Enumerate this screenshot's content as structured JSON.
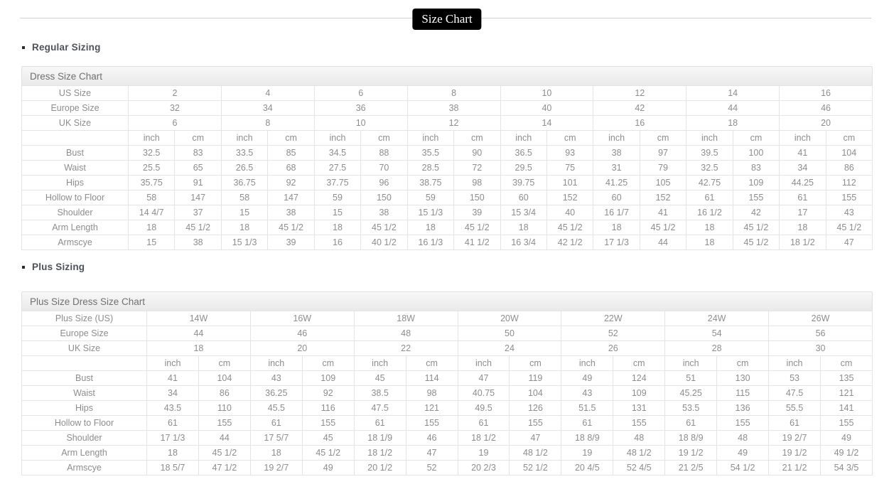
{
  "badge": {
    "label": "Size Chart"
  },
  "units": {
    "inch": "inch",
    "cm": "cm"
  },
  "colors": {
    "badge_bg": "#000000",
    "badge_text": "#ffffff",
    "heading_text": "#4e535a",
    "table_title_text": "#707070",
    "table_text": "#8d8d8d",
    "cell_border": "#e4e4e4"
  },
  "sections": [
    {
      "heading": "Regular Sizing",
      "table_title": "Dress Size Chart",
      "size_rows": [
        {
          "label": "US Size",
          "values": [
            "2",
            "4",
            "6",
            "8",
            "10",
            "12",
            "14",
            "16"
          ]
        },
        {
          "label": "Europe Size",
          "values": [
            "32",
            "34",
            "36",
            "38",
            "40",
            "42",
            "44",
            "46"
          ]
        },
        {
          "label": "UK Size",
          "values": [
            "6",
            "8",
            "10",
            "12",
            "14",
            "16",
            "18",
            "20"
          ]
        }
      ],
      "measure_rows": [
        {
          "label": "Bust",
          "values": [
            "32.5",
            "83",
            "33.5",
            "85",
            "34.5",
            "88",
            "35.5",
            "90",
            "36.5",
            "93",
            "38",
            "97",
            "39.5",
            "100",
            "41",
            "104"
          ]
        },
        {
          "label": "Waist",
          "values": [
            "25.5",
            "65",
            "26.5",
            "68",
            "27.5",
            "70",
            "28.5",
            "72",
            "29.5",
            "75",
            "31",
            "79",
            "32.5",
            "83",
            "34",
            "86"
          ]
        },
        {
          "label": "Hips",
          "values": [
            "35.75",
            "91",
            "36.75",
            "92",
            "37.75",
            "96",
            "38.75",
            "98",
            "39.75",
            "101",
            "41.25",
            "105",
            "42.75",
            "109",
            "44.25",
            "112"
          ]
        },
        {
          "label": "Hollow to Floor",
          "values": [
            "58",
            "147",
            "58",
            "147",
            "59",
            "150",
            "59",
            "150",
            "60",
            "152",
            "60",
            "152",
            "61",
            "155",
            "61",
            "155"
          ]
        },
        {
          "label": "Shoulder",
          "values": [
            "14 4/7",
            "37",
            "15",
            "38",
            "15",
            "38",
            "15 1/3",
            "39",
            "15 3/4",
            "40",
            "16 1/7",
            "41",
            "16 1/2",
            "42",
            "17",
            "43"
          ]
        },
        {
          "label": "Arm Length",
          "values": [
            "18",
            "45 1/2",
            "18",
            "45 1/2",
            "18",
            "45 1/2",
            "18",
            "45 1/2",
            "18",
            "45 1/2",
            "18",
            "45 1/2",
            "18",
            "45 1/2",
            "18",
            "45 1/2"
          ]
        },
        {
          "label": "Armscye",
          "values": [
            "15",
            "38",
            "15 1/3",
            "39",
            "16",
            "40 1/2",
            "16 1/3",
            "41 1/2",
            "16 3/4",
            "42 1/2",
            "17 1/3",
            "44",
            "18",
            "45 1/2",
            "18 1/2",
            "47"
          ]
        }
      ]
    },
    {
      "heading": "Plus Sizing",
      "table_title": "Plus Size Dress Size Chart",
      "size_rows": [
        {
          "label": "Plus Size (US)",
          "values": [
            "14W",
            "16W",
            "18W",
            "20W",
            "22W",
            "24W",
            "26W"
          ]
        },
        {
          "label": "Europe Size",
          "values": [
            "44",
            "46",
            "48",
            "50",
            "52",
            "54",
            "56"
          ]
        },
        {
          "label": "UK Size",
          "values": [
            "18",
            "20",
            "22",
            "24",
            "26",
            "28",
            "30"
          ]
        }
      ],
      "measure_rows": [
        {
          "label": "Bust",
          "values": [
            "41",
            "104",
            "43",
            "109",
            "45",
            "114",
            "47",
            "119",
            "49",
            "124",
            "51",
            "130",
            "53",
            "135"
          ]
        },
        {
          "label": "Waist",
          "values": [
            "34",
            "86",
            "36.25",
            "92",
            "38.5",
            "98",
            "40.75",
            "104",
            "43",
            "109",
            "45.25",
            "115",
            "47.5",
            "121"
          ]
        },
        {
          "label": "Hips",
          "values": [
            "43.5",
            "110",
            "45.5",
            "116",
            "47.5",
            "121",
            "49.5",
            "126",
            "51.5",
            "131",
            "53.5",
            "136",
            "55.5",
            "141"
          ]
        },
        {
          "label": "Hollow to Floor",
          "values": [
            "61",
            "155",
            "61",
            "155",
            "61",
            "155",
            "61",
            "155",
            "61",
            "155",
            "61",
            "155",
            "61",
            "155"
          ]
        },
        {
          "label": "Shoulder",
          "values": [
            "17 1/3",
            "44",
            "17 5/7",
            "45",
            "18 1/9",
            "46",
            "18 1/2",
            "47",
            "18 8/9",
            "48",
            "18 8/9",
            "48",
            "19 2/7",
            "49"
          ]
        },
        {
          "label": "Arm Length",
          "values": [
            "18",
            "45 1/2",
            "18",
            "45 1/2",
            "18 1/2",
            "47",
            "19",
            "48 1/2",
            "19",
            "48 1/2",
            "19 1/2",
            "49",
            "19 1/2",
            "49 1/2"
          ]
        },
        {
          "label": "Armscye",
          "values": [
            "18 5/7",
            "47 1/2",
            "19 2/7",
            "49",
            "20 1/2",
            "52",
            "20 2/3",
            "52 1/2",
            "20 4/5",
            "52 4/5",
            "21 2/5",
            "54 1/2",
            "21 1/2",
            "54 3/5"
          ]
        }
      ]
    }
  ]
}
